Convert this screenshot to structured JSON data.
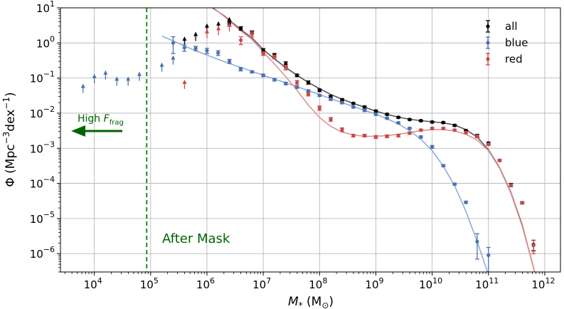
{
  "chart_data": {
    "type": "scatter",
    "x_scale": "log",
    "y_scale": "log",
    "xlim": [
      2500,
      1900000000000
    ],
    "ylim": [
      3e-07,
      10
    ],
    "grid": true,
    "legend_position": "top-right",
    "x_ticks": [
      {
        "value": 10000,
        "base": "10",
        "exp": "4"
      },
      {
        "value": 100000,
        "base": "10",
        "exp": "5"
      },
      {
        "value": 1000000,
        "base": "10",
        "exp": "6"
      },
      {
        "value": 10000000,
        "base": "10",
        "exp": "7"
      },
      {
        "value": 100000000,
        "base": "10",
        "exp": "8"
      },
      {
        "value": 1000000000,
        "base": "10",
        "exp": "9"
      },
      {
        "value": 10000000000,
        "base": "10",
        "exp": "10"
      },
      {
        "value": 100000000000,
        "base": "10",
        "exp": "11"
      },
      {
        "value": 1000000000000,
        "base": "10",
        "exp": "12"
      }
    ],
    "y_ticks": [
      {
        "value": 10,
        "base": "10",
        "exp": "1"
      },
      {
        "value": 1,
        "base": "10",
        "exp": "0"
      },
      {
        "value": 0.1,
        "base": "10",
        "exp": "−1"
      },
      {
        "value": 0.01,
        "base": "10",
        "exp": "−2"
      },
      {
        "value": 0.001,
        "base": "10",
        "exp": "−3"
      },
      {
        "value": 0.0001,
        "base": "10",
        "exp": "−4"
      },
      {
        "value": 1e-05,
        "base": "10",
        "exp": "−5"
      },
      {
        "value": 1e-06,
        "base": "10",
        "exp": "−6"
      }
    ],
    "xlabel": {
      "main": "M",
      "sub": "*",
      "paren_open": " (M",
      "sun": "⊙",
      "paren_close": ")"
    },
    "ylabel": {
      "main": "Φ (Mpc",
      "exp1": "−3",
      "mid": "dex",
      "exp2": "−1",
      "close": ")"
    },
    "mask_line": {
      "x": 85000,
      "color": "#1e8c1e"
    },
    "annotations": {
      "high_frag": {
        "prefix": "High ",
        "symbol": "F",
        "subscript": "frag",
        "color": "#006400"
      },
      "after_mask": {
        "text": "After Mask",
        "color": "#006400"
      }
    },
    "series": [
      {
        "name": "all",
        "color": "#000000",
        "upper_limits": [
          [
            400000,
            1.1
          ],
          [
            630000,
            1.5
          ],
          [
            1000000,
            2.6
          ],
          [
            1600000,
            3.0
          ],
          [
            2500000,
            4.0
          ]
        ],
        "points": [
          [
            2500000,
            3.5,
            0.5
          ],
          [
            4000000,
            2.6,
            0.3
          ],
          [
            6300000,
            2.0,
            0.2
          ],
          [
            10000000,
            0.62,
            0.07
          ],
          [
            15800000,
            0.45,
            0.05
          ],
          [
            25100000,
            0.25,
            0.04
          ],
          [
            39800000,
            0.12,
            0.01
          ],
          [
            63100000,
            0.075,
            0.008
          ],
          [
            100000000,
            0.045,
            0.004
          ],
          [
            158000000,
            0.03,
            0.002
          ],
          [
            251000000,
            0.024,
            0.002
          ],
          [
            398000000,
            0.019,
            0.001
          ],
          [
            631000000,
            0.015,
            0.001
          ],
          [
            1000000000,
            0.0115,
            0.0008
          ],
          [
            1580000000,
            0.0093,
            0.0006
          ],
          [
            2510000000,
            0.0076,
            0.0004
          ],
          [
            3980000000,
            0.0066,
            0.0003
          ],
          [
            6310000000,
            0.0061,
            0.0003
          ],
          [
            10000000000,
            0.0056,
            0.0003
          ],
          [
            15800000000,
            0.0054,
            0.0003
          ],
          [
            25100000000,
            0.0045,
            0.0003
          ],
          [
            39800000000,
            0.0032,
            0.0002
          ],
          [
            63100000000,
            0.0023,
            0.0002
          ],
          [
            100000000000,
            0.0014,
            0.0001
          ],
          [
            158000000000,
            0.00045,
            3e-05
          ],
          [
            251000000000,
            9e-05,
            1e-05
          ],
          [
            398000000000,
            2.8e-05,
            2e-06
          ],
          [
            631000000000,
            1.8e-06,
            6e-07
          ]
        ],
        "fit": [
          [
            1250000,
            10
          ],
          [
            2000000,
            6.0
          ],
          [
            4000000,
            2.4
          ],
          [
            6300000,
            1.4
          ],
          [
            10000000,
            0.65
          ],
          [
            15800000,
            0.35
          ],
          [
            25100000,
            0.2
          ],
          [
            39800000,
            0.12
          ],
          [
            63100000,
            0.075
          ],
          [
            100000000,
            0.05
          ],
          [
            158000000,
            0.034
          ],
          [
            251000000,
            0.025
          ],
          [
            398000000,
            0.019
          ],
          [
            631000000,
            0.0148
          ],
          [
            1000000000,
            0.0115
          ],
          [
            1580000000,
            0.0092
          ],
          [
            2510000000,
            0.0077
          ],
          [
            3980000000,
            0.0067
          ],
          [
            6310000000,
            0.0061
          ],
          [
            10000000000,
            0.0057
          ],
          [
            15800000000,
            0.0053
          ],
          [
            25100000000,
            0.0046
          ],
          [
            39800000000,
            0.0034
          ],
          [
            63100000000,
            0.0021
          ],
          [
            100000000000,
            0.0009
          ],
          [
            158000000000,
            0.00028
          ],
          [
            251000000000,
            5.5e-05
          ],
          [
            398000000000,
            6.5e-06
          ],
          [
            631000000000,
            4e-07
          ],
          [
            700000000000,
            2e-07
          ]
        ]
      },
      {
        "name": "blue",
        "color": "#4a72b0",
        "fit_color": "#8eaedb",
        "upper_limits": [
          [
            6300,
            0.05
          ],
          [
            10000,
            0.095
          ],
          [
            15800,
            0.12
          ],
          [
            25100,
            0.08
          ],
          [
            39800,
            0.08
          ],
          [
            63100,
            0.11
          ],
          [
            158000,
            0.2
          ],
          [
            251000,
            0.32
          ]
        ],
        "points": [
          [
            251000,
            1.0,
            0.5
          ],
          [
            398000,
            0.73,
            0.15
          ],
          [
            631000,
            0.7,
            0.1
          ],
          [
            1000000,
            0.6,
            0.1
          ],
          [
            1580000,
            0.52,
            0.08
          ],
          [
            2510000,
            0.3,
            0.04
          ],
          [
            3980000,
            0.18,
            0.02
          ],
          [
            6310000,
            0.15,
            0.01
          ],
          [
            10000000,
            0.12,
            0.01
          ],
          [
            15800000,
            0.09,
            0.008
          ],
          [
            25100000,
            0.07,
            0.006
          ],
          [
            39800000,
            0.055,
            0.004
          ],
          [
            63100000,
            0.043,
            0.003
          ],
          [
            100000000,
            0.032,
            0.002
          ],
          [
            158000000,
            0.025,
            0.002
          ],
          [
            251000000,
            0.02,
            0.0015
          ],
          [
            398000000,
            0.015,
            0.001
          ],
          [
            631000000,
            0.012,
            0.0008
          ],
          [
            1000000000,
            0.0093,
            0.0006
          ],
          [
            1580000000,
            0.0072,
            0.0004
          ],
          [
            2510000000,
            0.0053,
            0.0003
          ],
          [
            3980000000,
            0.0037,
            0.0002
          ],
          [
            6310000000,
            0.0021,
            0.00015
          ],
          [
            10000000000,
            0.0011,
            0.0001
          ],
          [
            15800000000,
            0.00032,
            2e-05
          ],
          [
            25100000000,
            9.5e-05,
            6e-06
          ],
          [
            39800000000,
            2.9e-05,
            2e-06
          ],
          [
            63100000000,
            2.2e-06,
            1.5e-06
          ],
          [
            100000000000,
            9e-07,
            6e-07
          ]
        ],
        "fit": [
          [
            160000,
            1.55
          ],
          [
            251000,
            1.15
          ],
          [
            398000,
            0.82
          ],
          [
            631000,
            0.6
          ],
          [
            1000000,
            0.45
          ],
          [
            1580000,
            0.34
          ],
          [
            2510000,
            0.26
          ],
          [
            3980000,
            0.2
          ],
          [
            6310000,
            0.155
          ],
          [
            10000000,
            0.12
          ],
          [
            15800000,
            0.094
          ],
          [
            25100000,
            0.073
          ],
          [
            39800000,
            0.057
          ],
          [
            63100000,
            0.044
          ],
          [
            100000000,
            0.034
          ],
          [
            158000000,
            0.026
          ],
          [
            251000000,
            0.02
          ],
          [
            398000000,
            0.0155
          ],
          [
            631000000,
            0.0121
          ],
          [
            1000000000,
            0.0093
          ],
          [
            1580000000,
            0.0069
          ],
          [
            2510000000,
            0.0049
          ],
          [
            3980000000,
            0.0032
          ],
          [
            6310000000,
            0.0018
          ],
          [
            10000000000,
            0.00085
          ],
          [
            15800000000,
            0.00031
          ],
          [
            25100000000,
            8.5e-05
          ],
          [
            39800000000,
            1.6e-05
          ],
          [
            63100000000,
            2.2e-06
          ],
          [
            100000000000,
            2.5e-07
          ]
        ]
      },
      {
        "name": "red",
        "color": "#c84848",
        "fit_color": "#e09090",
        "upper_limits": [
          [
            400000,
            0.065
          ],
          [
            1000000,
            1.8
          ],
          [
            1600000,
            2.2
          ],
          [
            2500000,
            2.8
          ]
        ],
        "points": [
          [
            4000000,
            1.2,
            0.3
          ],
          [
            6310000,
            1.8,
            0.3
          ],
          [
            10000000,
            0.5,
            0.06
          ],
          [
            15800000,
            0.4,
            0.05
          ],
          [
            25100000,
            0.2,
            0.03
          ],
          [
            39800000,
            0.075,
            0.01
          ],
          [
            63100000,
            0.035,
            0.004
          ],
          [
            100000000,
            0.014,
            0.002
          ],
          [
            158000000,
            0.0067,
            0.0008
          ],
          [
            251000000,
            0.0034,
            0.0004
          ],
          [
            398000000,
            0.0023,
            0.0002
          ],
          [
            631000000,
            0.0023,
            0.0002
          ],
          [
            1000000000,
            0.0021,
            0.0002
          ],
          [
            1580000000,
            0.0022,
            0.0002
          ],
          [
            2510000000,
            0.0023,
            0.0002
          ],
          [
            3980000000,
            0.0027,
            0.0002
          ],
          [
            6310000000,
            0.0033,
            0.0002
          ],
          [
            10000000000,
            0.0037,
            0.0002
          ],
          [
            15800000000,
            0.0037,
            0.0002
          ],
          [
            25100000000,
            0.0033,
            0.0002
          ],
          [
            39800000000,
            0.0028,
            0.0002
          ],
          [
            63100000000,
            0.0022,
            0.0002
          ],
          [
            100000000000,
            0.0013,
            0.0001
          ],
          [
            158000000000,
            0.00045,
            3e-05
          ],
          [
            251000000000,
            8.8e-05,
            8e-06
          ],
          [
            398000000000,
            2.8e-05,
            2e-06
          ],
          [
            631000000000,
            1.7e-06,
            7e-07
          ]
        ],
        "fit": [
          [
            1300000,
            10
          ],
          [
            2000000,
            5.8
          ],
          [
            4000000,
            2.2
          ],
          [
            6310000,
            1.25
          ],
          [
            10000000,
            0.55
          ],
          [
            15800000,
            0.25
          ],
          [
            25100000,
            0.11
          ],
          [
            39800000,
            0.045
          ],
          [
            63100000,
            0.017
          ],
          [
            100000000,
            0.0075
          ],
          [
            158000000,
            0.0042
          ],
          [
            251000000,
            0.0029
          ],
          [
            398000000,
            0.0024
          ],
          [
            631000000,
            0.0022
          ],
          [
            1000000000,
            0.0022
          ],
          [
            1580000000,
            0.0023
          ],
          [
            2510000000,
            0.0025
          ],
          [
            3980000000,
            0.0028
          ],
          [
            6310000000,
            0.0032
          ],
          [
            10000000000,
            0.0034
          ],
          [
            15800000000,
            0.0034
          ],
          [
            25100000000,
            0.0031
          ],
          [
            39800000000,
            0.0025
          ],
          [
            63100000000,
            0.0017
          ],
          [
            100000000000,
            0.00085
          ],
          [
            158000000000,
            0.00027
          ],
          [
            251000000000,
            5.2e-05
          ],
          [
            398000000000,
            6e-06
          ],
          [
            631000000000,
            4e-07
          ],
          [
            700000000000,
            2e-07
          ]
        ]
      }
    ]
  }
}
